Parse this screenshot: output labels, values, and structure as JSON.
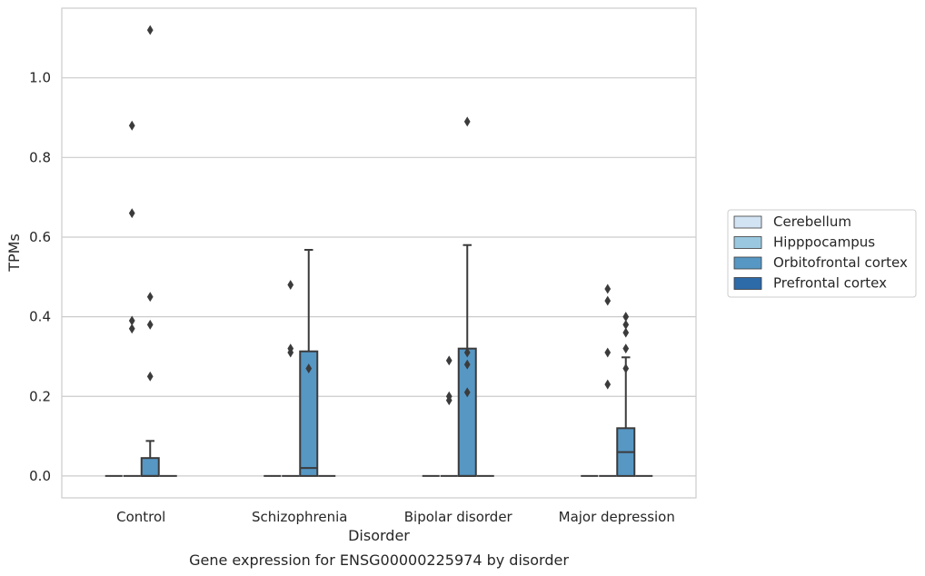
{
  "chart_data": {
    "type": "box",
    "title": "",
    "xlabel": "Disorder",
    "ylabel": "TPMs",
    "caption": "Gene expression for ENSG00000225974 by disorder",
    "categories": [
      "Control",
      "Schizophrenia",
      "Bipolar disorder",
      "Major depression"
    ],
    "ylim": [
      -0.055,
      1.175
    ],
    "yticks": [
      0.0,
      0.2,
      0.4,
      0.6,
      0.8,
      1.0
    ],
    "grid": true,
    "legend_position": "right",
    "series": [
      {
        "name": "Cerebellum",
        "color": "#d2e3f3",
        "boxes": [
          {
            "q1": 0,
            "median": 0,
            "q3": 0,
            "whisker_low": 0,
            "whisker_high": 0,
            "outliers": []
          },
          {
            "q1": 0,
            "median": 0,
            "q3": 0,
            "whisker_low": 0,
            "whisker_high": 0,
            "outliers": []
          },
          {
            "q1": 0,
            "median": 0,
            "q3": 0,
            "whisker_low": 0,
            "whisker_high": 0,
            "outliers": []
          },
          {
            "q1": 0,
            "median": 0,
            "q3": 0,
            "whisker_low": 0,
            "whisker_high": 0,
            "outliers": []
          }
        ]
      },
      {
        "name": "Hipppocampus",
        "color": "#9ac8e0",
        "boxes": [
          {
            "q1": 0,
            "median": 0,
            "q3": 0,
            "whisker_low": 0,
            "whisker_high": 0,
            "outliers": [
              0.37,
              0.39,
              0.66,
              0.88
            ]
          },
          {
            "q1": 0,
            "median": 0,
            "q3": 0,
            "whisker_low": 0,
            "whisker_high": 0,
            "outliers": [
              0.31,
              0.32,
              0.48
            ]
          },
          {
            "q1": 0,
            "median": 0,
            "q3": 0,
            "whisker_low": 0,
            "whisker_high": 0,
            "outliers": [
              0.19,
              0.2,
              0.29
            ]
          },
          {
            "q1": 0,
            "median": 0,
            "q3": 0,
            "whisker_low": 0,
            "whisker_high": 0,
            "outliers": [
              0.23,
              0.31,
              0.44,
              0.47
            ]
          }
        ]
      },
      {
        "name": "Orbitofrontal cortex",
        "color": "#5697c4",
        "boxes": [
          {
            "q1": 0,
            "median": 0,
            "q3": 0.045,
            "whisker_low": 0,
            "whisker_high": 0.088,
            "outliers": [
              0.25,
              0.38,
              0.45,
              1.12
            ]
          },
          {
            "q1": 0,
            "median": 0.02,
            "q3": 0.313,
            "whisker_low": 0,
            "whisker_high": 0.568,
            "outliers": [
              0.27
            ]
          },
          {
            "q1": 0,
            "median": 0,
            "q3": 0.32,
            "whisker_low": 0,
            "whisker_high": 0.58,
            "outliers": [
              0.21,
              0.28,
              0.31,
              0.89
            ]
          },
          {
            "q1": 0,
            "median": 0.06,
            "q3": 0.12,
            "whisker_low": 0,
            "whisker_high": 0.298,
            "outliers": [
              0.27,
              0.32,
              0.36,
              0.38,
              0.4
            ]
          }
        ]
      },
      {
        "name": "Prefrontal cortex",
        "color": "#2c6aa8",
        "boxes": [
          {
            "q1": 0,
            "median": 0,
            "q3": 0,
            "whisker_low": 0,
            "whisker_high": 0,
            "outliers": []
          },
          {
            "q1": 0,
            "median": 0,
            "q3": 0,
            "whisker_low": 0,
            "whisker_high": 0,
            "outliers": []
          },
          {
            "q1": 0,
            "median": 0,
            "q3": 0,
            "whisker_low": 0,
            "whisker_high": 0,
            "outliers": []
          },
          {
            "q1": 0,
            "median": 0,
            "q3": 0,
            "whisker_low": 0,
            "whisker_high": 0,
            "outliers": []
          }
        ]
      }
    ]
  }
}
